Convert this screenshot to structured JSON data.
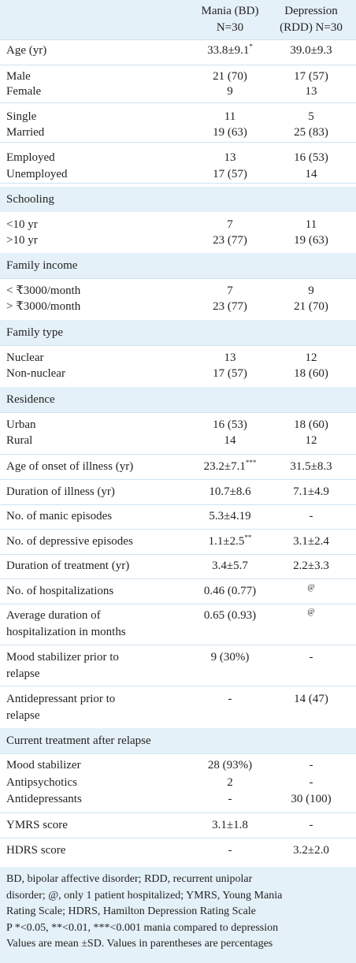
{
  "header": {
    "mania": [
      "Mania (BD)",
      "N=30"
    ],
    "depression": [
      "Depression",
      "(RDD) N=30"
    ]
  },
  "table": {
    "rows": [
      {
        "label": [
          "Age (yr)"
        ],
        "mania": {
          "text": "33.8±9.1",
          "sup": "*"
        },
        "depression": "39.0±9.3"
      },
      {
        "label": [
          "Male"
        ],
        "mania": "21 (70)",
        "depression": "17 (57)"
      },
      {
        "label": [
          "Female"
        ],
        "mania": "9",
        "depression": "13"
      },
      {
        "label": [
          "Single"
        ],
        "mania": "11",
        "depression": "5"
      },
      {
        "label": [
          "Married"
        ],
        "mania": "19 (63)",
        "depression": "25 (83)"
      },
      {
        "label": [
          "Employed"
        ],
        "mania": "13",
        "depression": "16 (53)"
      },
      {
        "label": [
          "Unemployed"
        ],
        "mania": "17 (57)",
        "depression": "14"
      },
      {
        "section": "Schooling"
      },
      {
        "label": [
          "<10 yr"
        ],
        "mania": "7",
        "depression": "11"
      },
      {
        "label": [
          ">10 yr"
        ],
        "mania": "23 (77)",
        "depression": "19 (63)"
      },
      {
        "section": "Family income"
      },
      {
        "label": [
          "< ₹3000/month"
        ],
        "mania": "7",
        "depression": "9"
      },
      {
        "label": [
          "> ₹3000/month"
        ],
        "mania": "23 (77)",
        "depression": "21 (70)"
      },
      {
        "section": "Family type"
      },
      {
        "label": [
          "Nuclear"
        ],
        "mania": "13",
        "depression": "12"
      },
      {
        "label": [
          "Non-nuclear"
        ],
        "mania": "17 (57)",
        "depression": "18 (60)"
      },
      {
        "section": "Residence"
      },
      {
        "label": [
          "Urban"
        ],
        "mania": "16 (53)",
        "depression": "18 (60)"
      },
      {
        "label": [
          "Rural"
        ],
        "mania": "14",
        "depression": "12"
      },
      {
        "label": [
          "Age of onset of illness (yr)"
        ],
        "mania": {
          "text": "23.2±7.1",
          "sup": "***"
        },
        "depression": "31.5±8.3"
      },
      {
        "label": [
          "Duration of illness (yr)"
        ],
        "mania": "10.7±8.6",
        "depression": "7.1±4.9"
      },
      {
        "label": [
          "No. of manic episodes"
        ],
        "mania": "5.3±4.19",
        "depression": "-"
      },
      {
        "label": [
          "No. of depressive episodes"
        ],
        "mania": {
          "text": "1.1±2.5",
          "sup": "**"
        },
        "depression": "3.1±2.4"
      },
      {
        "label": [
          "Duration of treatment (yr)"
        ],
        "mania": "3.4±5.7",
        "depression": "2.2±3.3"
      },
      {
        "label": [
          "No. of hospitalizations"
        ],
        "mania": "0.46 (0.77)",
        "depression": {
          "sup": "@"
        }
      },
      {
        "label": [
          "Average duration of",
          "hospitalization in months"
        ],
        "mania": "0.65 (0.93)",
        "depression": {
          "sup": "@"
        }
      },
      {
        "label": [
          "Mood stabilizer prior to",
          "relapse"
        ],
        "mania": "9 (30%)",
        "depression": "-"
      },
      {
        "label": [
          "Antidepressant prior to",
          "relapse"
        ],
        "mania": "-",
        "depression": "14 (47)"
      },
      {
        "section": "Current treatment after relapse"
      },
      {
        "label": [
          "Mood stabilizer"
        ],
        "mania": "28 (93%)",
        "depression": "-"
      },
      {
        "label": [
          "Antipsychotics"
        ],
        "mania": "2",
        "depression": "-"
      },
      {
        "label": [
          "Antidepressants"
        ],
        "mania": "-",
        "depression": "30 (100)"
      },
      {
        "label": [
          "YMRS score"
        ],
        "mania": "3.1±1.8",
        "depression": "-"
      },
      {
        "label": [
          "HDRS score"
        ],
        "mania": "-",
        "depression": "3.2±2.0"
      }
    ]
  },
  "footer": {
    "lines": [
      "BD, bipolar affective disorder; RDD, recurrent unipolar",
      "disorder; @, only 1 patient hospitalized; YMRS, Young Mania",
      "Rating Scale;  HDRS, Hamilton Depression Rating Scale",
      "P *<0.05, **<0.01, ***<0.001 mania compared to depression",
      "Values are mean ±SD. Values in parentheses are percentages"
    ]
  }
}
